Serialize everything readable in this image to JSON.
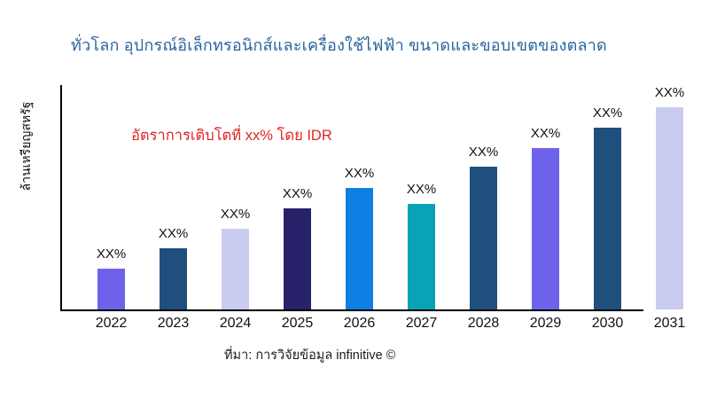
{
  "chart_data": {
    "type": "bar",
    "title": "ทั่วโลก อุปกรณ์อิเล็กทรอนิกส์และเครื่องใช้ไฟฟ้า ขนาดและขอบเขตของตลาด",
    "xlabel": "",
    "ylabel": "ล้านเหรียญสหรัฐ",
    "annotation": "อัตราการเติบโตที่ xx% โดย IDR",
    "source": "ที่มา: การวิจัยข้อมูล infinitive ©",
    "categories": [
      "2022",
      "2023",
      "2024",
      "2025",
      "2026",
      "2027",
      "2028",
      "2029",
      "2030",
      "2031"
    ],
    "values": [
      46,
      69,
      91,
      114,
      137,
      119,
      161,
      182,
      205,
      228
    ],
    "values_unit": "relative-bar-height-px (no numeric axis shown; data labels are placeholders)",
    "data_labels": [
      "XX%",
      "XX%",
      "XX%",
      "XX%",
      "XX%",
      "XX%",
      "XX%",
      "XX%",
      "XX%",
      "XX%"
    ],
    "bar_colors": [
      "#6f62ea",
      "#204f7d",
      "#c9cbef",
      "#262168",
      "#0f7fe4",
      "#0aa2b5",
      "#204f7d",
      "#6f62ea",
      "#204f7d",
      "#c9cbef"
    ],
    "grid": false,
    "legend": false,
    "colors": {
      "title": "#28639e",
      "annotation": "#e02424",
      "axis": "#000000",
      "labels": "#111111"
    }
  }
}
